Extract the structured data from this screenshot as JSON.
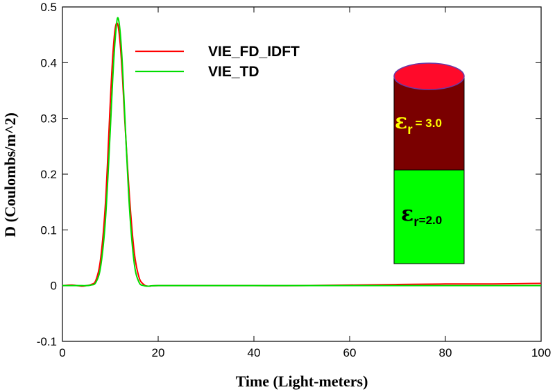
{
  "chart_data": {
    "type": "line",
    "xlabel": "Time (Light-meters)",
    "ylabel": "D (Coulombs/m^2)",
    "xlim": [
      0,
      100
    ],
    "ylim": [
      -0.1,
      0.5
    ],
    "xticks": [
      "0",
      "20",
      "40",
      "60",
      "80",
      "100"
    ],
    "yticks": [
      "-0.1",
      "0",
      "0.1",
      "0.2",
      "0.3",
      "0.4",
      "0.5"
    ],
    "legend_position": "top-left",
    "grid": false,
    "series": [
      {
        "name": "VIE_FD_IDFT",
        "color": "#ff0000",
        "x": [
          0,
          2,
          4,
          5,
          6,
          7,
          8,
          9,
          10,
          10.5,
          11,
          11.5,
          12,
          12.5,
          13,
          14,
          15,
          16,
          17,
          18,
          20,
          30,
          40,
          50,
          60,
          70,
          80,
          90,
          100
        ],
        "y": [
          0,
          0.001,
          -0.001,
          0.0,
          0.002,
          0.01,
          0.05,
          0.15,
          0.33,
          0.41,
          0.46,
          0.47,
          0.44,
          0.38,
          0.3,
          0.16,
          0.06,
          0.015,
          0.002,
          -0.001,
          0.0,
          0.0,
          0.0,
          0.0,
          0.001,
          0.002,
          0.003,
          0.003,
          0.004
        ]
      },
      {
        "name": "VIE_TD",
        "color": "#00dd00",
        "x": [
          0,
          2,
          4,
          5,
          6,
          7,
          8,
          9,
          10,
          10.5,
          11,
          11.5,
          12,
          12.5,
          13,
          14,
          15,
          16,
          17,
          18,
          20,
          30,
          40,
          50,
          60,
          70,
          80,
          90,
          100
        ],
        "y": [
          0,
          0.0,
          0.0,
          0.0,
          0.001,
          0.006,
          0.035,
          0.12,
          0.28,
          0.37,
          0.44,
          0.48,
          0.46,
          0.4,
          0.31,
          0.14,
          0.04,
          0.006,
          0.0,
          -0.001,
          0.0,
          0.0,
          0.0,
          0.0,
          0.0,
          0.0,
          0.0,
          0.0,
          0.0
        ]
      }
    ]
  },
  "inset": {
    "top_label_symbol": "ε",
    "top_label_sub": "r",
    "top_label_value": "= 3.0",
    "bottom_label_symbol": "ε",
    "bottom_label_sub": "r",
    "bottom_label_value": "=2.0",
    "top_color": "#7a0000",
    "cap_color": "#ff0a2a",
    "bottom_color": "#00ff00",
    "top_text_color": "#ffff00",
    "bottom_text_color": "#000000"
  }
}
